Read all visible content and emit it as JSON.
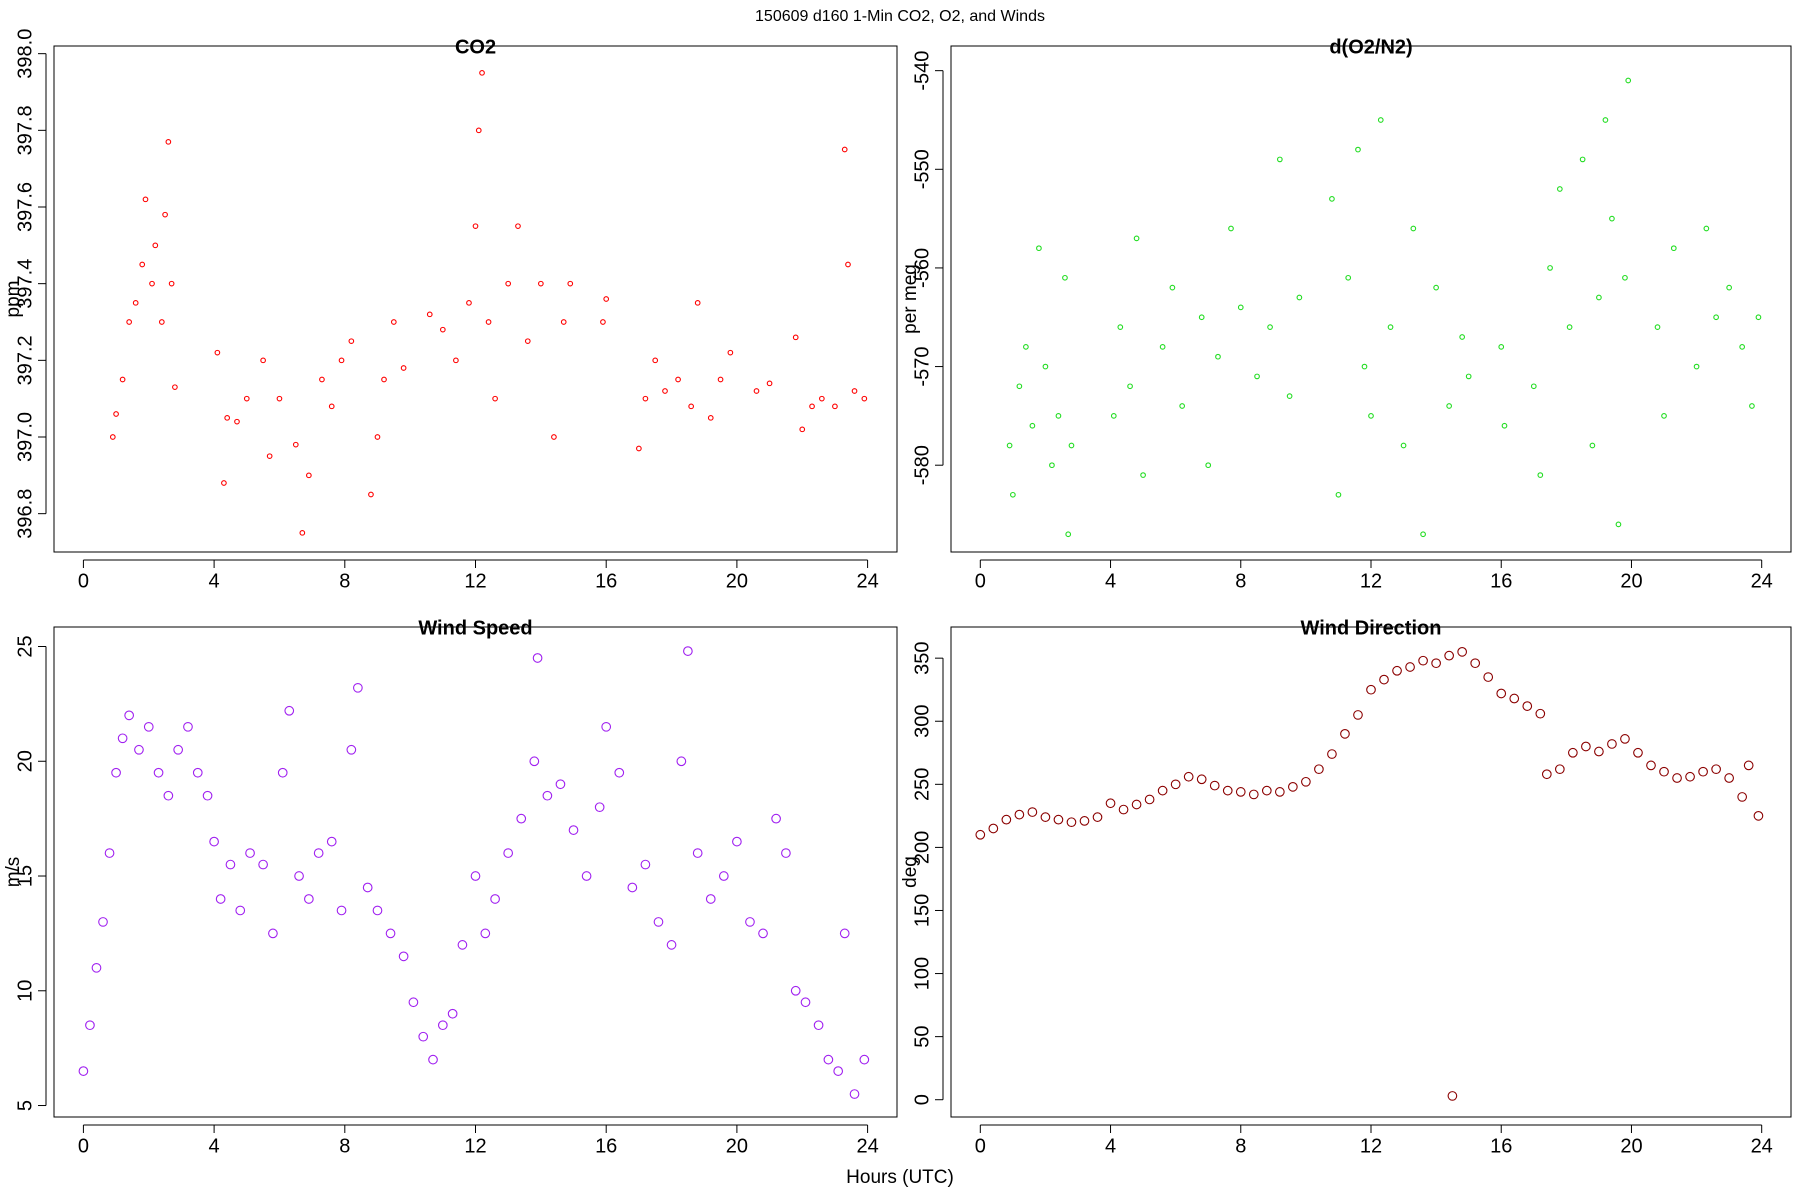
{
  "title": "150609   d160   1-Min CO2, O2, and Winds",
  "xlabel": "Hours (UTC)",
  "chart_data": [
    {
      "type": "scatter",
      "title": "CO2",
      "ylabel": "ppm",
      "color": "#ff0000",
      "xlim": [
        -0.9,
        24.9
      ],
      "xticks": [
        0,
        4,
        8,
        12,
        16,
        20,
        24
      ],
      "ylim": [
        396.7,
        398.02
      ],
      "yticks": [
        396.8,
        {
          "value": 397,
          "label": "397.0"
        },
        397.2,
        397.4,
        397.6,
        397.8,
        {
          "value": 398,
          "label": "398.0"
        }
      ],
      "x": [
        0.9,
        1.0,
        1.2,
        1.4,
        1.6,
        1.8,
        1.9,
        2.1,
        2.2,
        2.4,
        2.5,
        2.6,
        2.7,
        2.8,
        4.1,
        4.3,
        4.4,
        4.7,
        5.0,
        5.5,
        5.7,
        6.0,
        6.5,
        6.7,
        6.9,
        7.3,
        7.6,
        7.9,
        8.2,
        8.8,
        9.0,
        9.2,
        9.5,
        9.8,
        10.6,
        11.0,
        11.4,
        11.8,
        12.0,
        12.1,
        12.2,
        12.4,
        12.6,
        13.0,
        13.3,
        13.6,
        14.0,
        14.4,
        14.7,
        14.9,
        15.9,
        16.0,
        17.0,
        17.2,
        17.5,
        17.8,
        18.2,
        18.6,
        18.8,
        19.2,
        19.5,
        19.8,
        20.6,
        21.0,
        21.8,
        22.0,
        22.3,
        22.6,
        23.0,
        23.3,
        23.4,
        23.6,
        23.9
      ],
      "y": [
        397.0,
        397.06,
        397.15,
        397.3,
        397.35,
        397.45,
        397.62,
        397.4,
        397.5,
        397.3,
        397.58,
        397.77,
        397.4,
        397.13,
        397.22,
        396.88,
        397.05,
        397.04,
        397.1,
        397.2,
        396.95,
        397.1,
        396.98,
        396.75,
        396.9,
        397.15,
        397.08,
        397.2,
        397.25,
        396.85,
        397.0,
        397.15,
        397.3,
        397.18,
        397.32,
        397.28,
        397.2,
        397.35,
        397.55,
        397.8,
        397.95,
        397.3,
        397.1,
        397.4,
        397.55,
        397.25,
        397.4,
        397.0,
        397.3,
        397.4,
        397.3,
        397.36,
        396.97,
        397.1,
        397.2,
        397.12,
        397.15,
        397.08,
        397.35,
        397.05,
        397.15,
        397.22,
        397.12,
        397.14,
        397.26,
        397.02,
        397.08,
        397.1,
        397.08,
        397.75,
        397.45,
        397.12,
        397.1
      ]
    },
    {
      "type": "scatter",
      "title": "d(O2/N2)",
      "ylabel": "per meg",
      "color": "#22dd22",
      "xlim": [
        -0.9,
        24.9
      ],
      "xticks": [
        0,
        4,
        8,
        12,
        16,
        20,
        24
      ],
      "ylim": [
        -588.8,
        -537.5
      ],
      "yticks": [
        -580,
        -570,
        -560,
        -550,
        -540
      ],
      "x": [
        0.9,
        1.0,
        1.2,
        1.4,
        1.6,
        1.8,
        2.0,
        2.2,
        2.4,
        2.6,
        2.7,
        2.8,
        4.1,
        4.3,
        4.6,
        4.8,
        5.0,
        5.6,
        5.9,
        6.2,
        6.8,
        7.0,
        7.3,
        7.7,
        8.0,
        8.5,
        8.9,
        9.2,
        9.5,
        9.8,
        10.8,
        11.0,
        11.3,
        11.6,
        11.8,
        12.0,
        12.3,
        12.6,
        13.0,
        13.3,
        13.6,
        14.0,
        14.4,
        14.8,
        15.0,
        16.0,
        16.1,
        17.0,
        17.2,
        17.5,
        17.8,
        18.1,
        18.5,
        18.8,
        19.0,
        19.2,
        19.4,
        19.6,
        19.8,
        19.9,
        20.8,
        21.0,
        21.3,
        22.0,
        22.3,
        22.6,
        23.0,
        23.4,
        23.7,
        23.9
      ],
      "y": [
        -578,
        -583,
        -572,
        -568,
        -576,
        -558,
        -570,
        -580,
        -575,
        -561,
        -587,
        -578,
        -575,
        -566,
        -572,
        -557,
        -581,
        -568,
        -562,
        -574,
        -565,
        -580,
        -569,
        -556,
        -564,
        -571,
        -566,
        -549,
        -573,
        -563,
        -553,
        -583,
        -561,
        -548,
        -570,
        -575,
        -545,
        -566,
        -578,
        -556,
        -587,
        -562,
        -574,
        -567,
        -571,
        -568,
        -576,
        -572,
        -581,
        -560,
        -552,
        -566,
        -549,
        -578,
        -563,
        -545,
        -555,
        -586,
        -561,
        -541,
        -566,
        -575,
        -558,
        -570,
        -556,
        -565,
        -562,
        -568,
        -574,
        -565
      ]
    },
    {
      "type": "scatter",
      "title": "Wind Speed",
      "ylabel": "m/s",
      "color": "#a020f0",
      "xlim": [
        -0.9,
        24.9
      ],
      "xticks": [
        0,
        4,
        8,
        12,
        16,
        20,
        24
      ],
      "ylim": [
        4.5,
        25.85
      ],
      "yticks": [
        5,
        10,
        15,
        20,
        25
      ],
      "x": [
        0.0,
        0.2,
        0.4,
        0.6,
        0.8,
        1.0,
        1.2,
        1.4,
        1.7,
        2.0,
        2.3,
        2.6,
        2.9,
        3.2,
        3.5,
        3.8,
        4.0,
        4.2,
        4.5,
        4.8,
        5.1,
        5.5,
        5.8,
        6.1,
        6.3,
        6.6,
        6.9,
        7.2,
        7.6,
        7.9,
        8.2,
        8.4,
        8.7,
        9.0,
        9.4,
        9.8,
        10.1,
        10.4,
        10.7,
        11.0,
        11.3,
        11.6,
        12.0,
        12.3,
        12.6,
        13.0,
        13.4,
        13.8,
        13.9,
        14.2,
        14.6,
        15.0,
        15.4,
        15.8,
        16.0,
        16.4,
        16.8,
        17.2,
        17.6,
        18.0,
        18.3,
        18.5,
        18.8,
        19.2,
        19.6,
        20.0,
        20.4,
        20.8,
        21.2,
        21.5,
        21.8,
        22.1,
        22.5,
        22.8,
        23.1,
        23.3,
        23.6,
        23.9
      ],
      "y": [
        6.5,
        8.5,
        11,
        13,
        16,
        19.5,
        21,
        22,
        20.5,
        21.5,
        19.5,
        18.5,
        20.5,
        21.5,
        19.5,
        18.5,
        16.5,
        14,
        15.5,
        13.5,
        16,
        15.5,
        12.5,
        19.5,
        22.2,
        15,
        14,
        16,
        16.5,
        13.5,
        20.5,
        23.2,
        14.5,
        13.5,
        12.5,
        11.5,
        9.5,
        8,
        7,
        8.5,
        9,
        12,
        15,
        12.5,
        14,
        16,
        17.5,
        20,
        24.5,
        18.5,
        19,
        17,
        15,
        18,
        21.5,
        19.5,
        14.5,
        15.5,
        13,
        12,
        20,
        24.8,
        16,
        14,
        15,
        16.5,
        13,
        12.5,
        17.5,
        16,
        10,
        9.5,
        8.5,
        7,
        6.5,
        12.5,
        5.5,
        7
      ]
    },
    {
      "type": "scatter",
      "title": "Wind Direction",
      "ylabel": "deg",
      "color": "#8b0000",
      "xlim": [
        -0.9,
        24.9
      ],
      "xticks": [
        0,
        4,
        8,
        12,
        16,
        20,
        24
      ],
      "ylim": [
        -13.7,
        374.7
      ],
      "yticks": [
        0,
        50,
        100,
        150,
        200,
        250,
        300,
        350
      ],
      "x": [
        0,
        0.4,
        0.8,
        1.2,
        1.6,
        2.0,
        2.4,
        2.8,
        3.2,
        3.6,
        4.0,
        4.4,
        4.8,
        5.2,
        5.6,
        6.0,
        6.4,
        6.8,
        7.2,
        7.6,
        8.0,
        8.4,
        8.8,
        9.2,
        9.6,
        10.0,
        10.4,
        10.8,
        11.2,
        11.6,
        12.0,
        12.4,
        12.8,
        13.2,
        13.6,
        14.0,
        14.4,
        14.5,
        14.8,
        15.2,
        15.6,
        16.0,
        16.4,
        16.8,
        17.2,
        17.4,
        17.8,
        18.2,
        18.6,
        19.0,
        19.4,
        19.8,
        20.2,
        20.6,
        21.0,
        21.4,
        21.8,
        22.2,
        22.6,
        23.0,
        23.4,
        23.6,
        23.9
      ],
      "y": [
        210,
        215,
        222,
        226,
        228,
        224,
        222,
        220,
        221,
        224,
        235,
        230,
        234,
        238,
        245,
        250,
        256,
        254,
        249,
        245,
        244,
        242,
        245,
        244,
        248,
        252,
        262,
        274,
        290,
        305,
        325,
        333,
        340,
        343,
        348,
        346,
        352,
        3,
        355,
        346,
        335,
        322,
        318,
        312,
        306,
        258,
        262,
        275,
        280,
        276,
        282,
        286,
        275,
        265,
        260,
        255,
        256,
        260,
        262,
        255,
        240,
        265,
        225
      ]
    }
  ]
}
